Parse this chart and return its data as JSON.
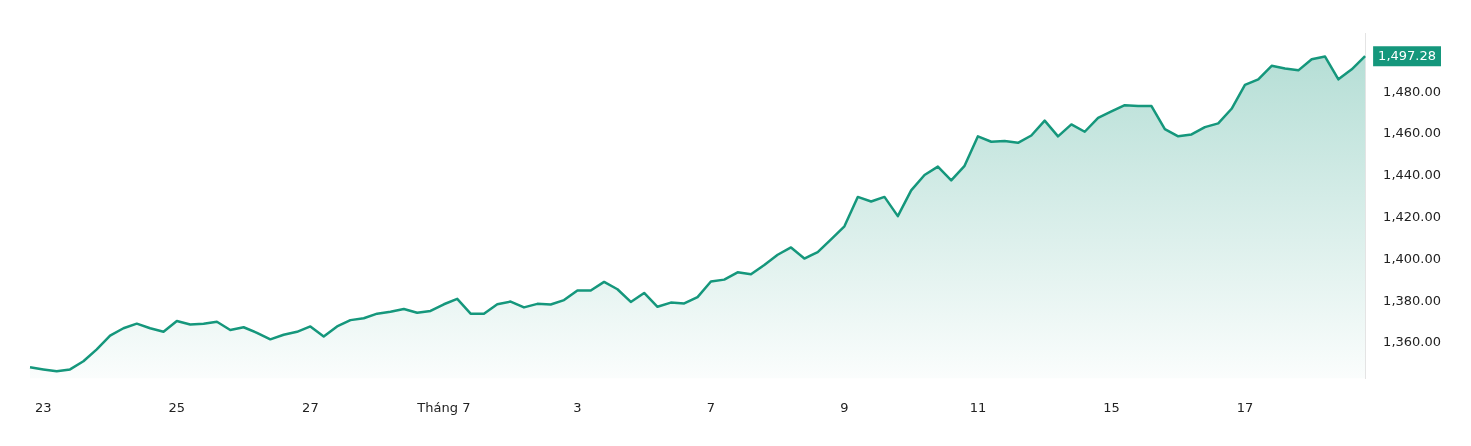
{
  "chart_data": {
    "type": "area",
    "categories": [
      null,
      "23",
      null,
      null,
      null,
      null,
      null,
      null,
      null,
      null,
      null,
      "25",
      null,
      null,
      null,
      null,
      null,
      null,
      null,
      null,
      null,
      "27",
      null,
      null,
      null,
      null,
      null,
      null,
      null,
      null,
      null,
      "Tháng 7",
      null,
      null,
      null,
      null,
      null,
      null,
      null,
      null,
      null,
      "3",
      null,
      null,
      null,
      null,
      null,
      null,
      null,
      null,
      null,
      "7",
      null,
      null,
      null,
      null,
      null,
      null,
      null,
      null,
      null,
      "9",
      null,
      null,
      null,
      null,
      null,
      null,
      null,
      null,
      null,
      "11",
      null,
      null,
      null,
      null,
      null,
      null,
      null,
      null,
      null,
      "15",
      null,
      null,
      null,
      null,
      null,
      null,
      null,
      null,
      null,
      "17",
      null,
      null,
      null,
      null,
      null,
      null,
      null,
      null,
      null
    ],
    "series": [
      {
        "color": "#15977c",
        "values": [
          1348.3,
          1347.3,
          1346.4,
          1347.3,
          1351.2,
          1356.9,
          1363.5,
          1367.0,
          1369.2,
          1367.0,
          1365.3,
          1370.5,
          1368.8,
          1369.2,
          1370.1,
          1366.2,
          1367.5,
          1364.8,
          1361.7,
          1363.9,
          1365.3,
          1367.9,
          1363.1,
          1367.9,
          1370.9,
          1371.8,
          1374.0,
          1374.9,
          1376.2,
          1374.4,
          1375.3,
          1378.5,
          1381.1,
          1374.0,
          1374.0,
          1378.5,
          1379.8,
          1377.0,
          1378.7,
          1378.4,
          1380.5,
          1385.1,
          1385.1,
          1389.2,
          1385.7,
          1379.6,
          1383.9,
          1377.3,
          1379.3,
          1378.9,
          1381.9,
          1389.4,
          1390.3,
          1393.8,
          1392.9,
          1397.3,
          1402.2,
          1405.7,
          1400.4,
          1403.5,
          1409.6,
          1415.8,
          1429.9,
          1427.7,
          1429.9,
          1420.7,
          1433.0,
          1440.4,
          1444.4,
          1437.8,
          1444.8,
          1458.9,
          1456.3,
          1456.7,
          1455.8,
          1459.3,
          1466.4,
          1458.9,
          1464.6,
          1461.1,
          1467.7,
          1470.8,
          1473.8,
          1473.4,
          1473.4,
          1462.4,
          1458.9,
          1459.8,
          1463.3,
          1465.1,
          1472.1,
          1483.5,
          1486.2,
          1492.7,
          1491.4,
          1490.5,
          1495.8,
          1497.1,
          1486.2,
          1491.0,
          1497.28
        ]
      }
    ],
    "ylim": [
      1343,
      1508
    ],
    "yticks": [
      {
        "value": 1360,
        "label": "1,360.00"
      },
      {
        "value": 1380,
        "label": "1,380.00"
      },
      {
        "value": 1400,
        "label": "1,400.00"
      },
      {
        "value": 1420,
        "label": "1,420.00"
      },
      {
        "value": 1440,
        "label": "1,440.00"
      },
      {
        "value": 1460,
        "label": "1,460.00"
      },
      {
        "value": 1480,
        "label": "1,480.00"
      }
    ],
    "annotations": [
      "1,497.28"
    ],
    "grid": false,
    "legend": false
  }
}
